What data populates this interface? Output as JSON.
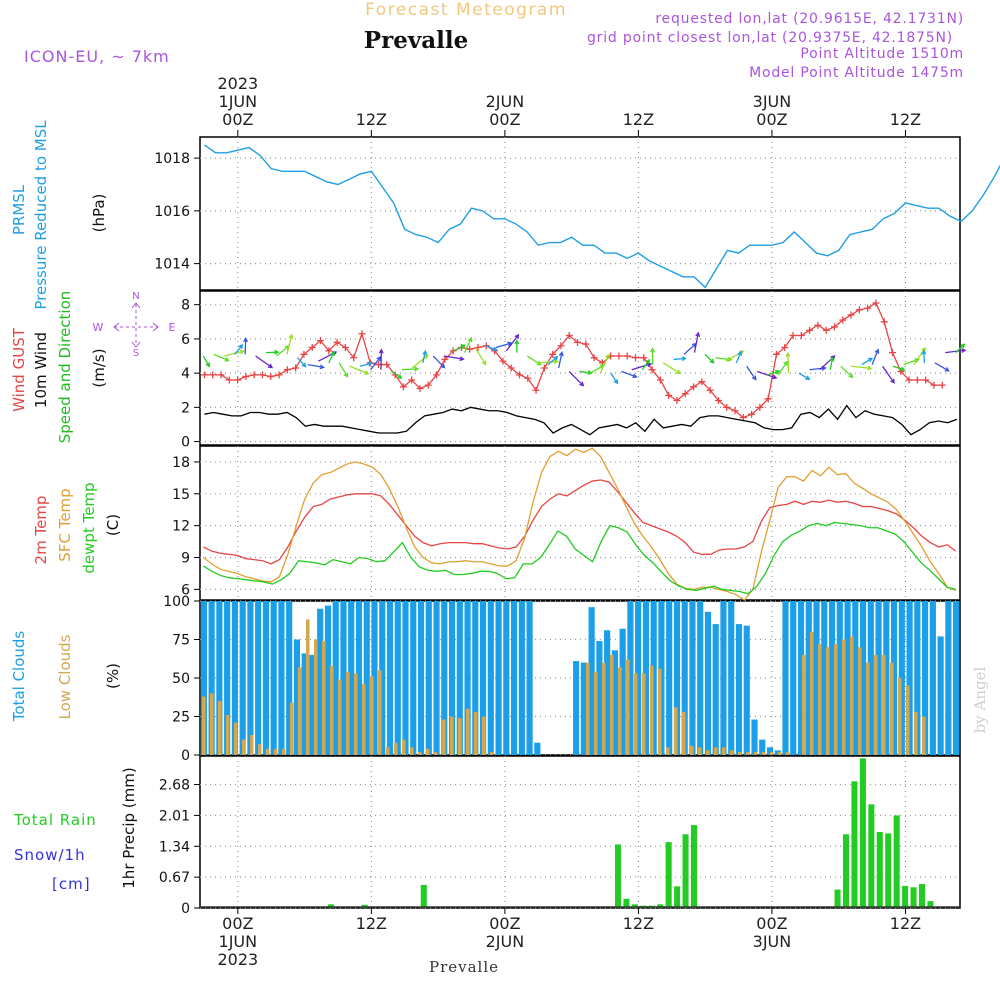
{
  "header": {
    "forecast_title": "Forecast Meteogram",
    "station": "Prevalle",
    "model": "ICON-EU, ~ 7km",
    "requested": "requested lon,lat (20.9615E, 42.1731N)",
    "grid_point": "grid point closest lon,lat (20.9375E, 42.1875N)",
    "point_alt": "Point Altitude 1510m",
    "model_alt": "Model Point Altitude 1475m",
    "watermark": "by Angel",
    "footer_station": "Prevalle"
  },
  "time_axis": {
    "top_labels": [
      {
        "hour": 0,
        "lines": [
          "2023",
          "1JUN",
          "00Z"
        ]
      },
      {
        "hour": 12,
        "lines": [
          "12Z"
        ]
      },
      {
        "hour": 24,
        "lines": [
          "2JUN",
          "00Z"
        ]
      },
      {
        "hour": 36,
        "lines": [
          "12Z"
        ]
      },
      {
        "hour": 48,
        "lines": [
          "3JUN",
          "00Z"
        ]
      },
      {
        "hour": 60,
        "lines": [
          "12Z"
        ]
      }
    ],
    "bottom_labels": [
      {
        "hour": 0,
        "lines": [
          "00Z",
          "1JUN",
          "2023"
        ]
      },
      {
        "hour": 12,
        "lines": [
          "12Z"
        ]
      },
      {
        "hour": 24,
        "lines": [
          "00Z",
          "2JUN"
        ]
      },
      {
        "hour": 36,
        "lines": [
          "12Z"
        ]
      },
      {
        "hour": 48,
        "lines": [
          "00Z",
          "3JUN"
        ]
      },
      {
        "hour": 60,
        "lines": [
          "12Z"
        ]
      }
    ]
  },
  "colors": {
    "pressure": "#1e9fe6",
    "gust": "#e84545",
    "wind10": "#000000",
    "wind_label": "#22bb22",
    "t2m": "#e84545",
    "sfc": "#e0a030",
    "dewpt": "#22cc22",
    "total_cloud": "#1a9fe8",
    "low_cloud": "#d4a850",
    "rain": "#22cc22",
    "snow": "#3333dd",
    "purple": "#aa55dd",
    "title_orange": "#f0c880"
  },
  "chart_data": [
    {
      "type": "line",
      "title": "PRMSL Pressure Reduced to MSL",
      "ylabel": "(hPa)",
      "ylim": [
        1013,
        1018.8
      ],
      "yticks": [
        1014,
        1016,
        1018
      ],
      "x_start_hour": -3,
      "x_step_hours": 1,
      "series": [
        {
          "name": "PRMSL",
          "values": [
            1018.5,
            1018.2,
            1018.2,
            1018.3,
            1018.4,
            1018.1,
            1017.6,
            1017.5,
            1017.5,
            1017.5,
            1017.3,
            1017.1,
            1017.0,
            1017.2,
            1017.4,
            1017.5,
            1016.9,
            1016.3,
            1015.3,
            1015.1,
            1015.0,
            1014.8,
            1015.3,
            1015.5,
            1016.1,
            1016.0,
            1015.7,
            1015.7,
            1015.5,
            1015.2,
            1014.7,
            1014.8,
            1014.8,
            1015.0,
            1014.7,
            1014.7,
            1014.4,
            1014.4,
            1014.2,
            1014.4,
            1014.1,
            1013.9,
            1013.7,
            1013.5,
            1013.5,
            1013.1,
            1013.8,
            1014.5,
            1014.4,
            1014.7,
            1014.7,
            1014.7,
            1014.8,
            1015.2,
            1014.8,
            1014.4,
            1014.3,
            1014.5,
            1015.1,
            1015.2,
            1015.3,
            1015.7,
            1015.9,
            1016.3,
            1016.2,
            1016.1,
            1016.1,
            1015.8,
            1015.6,
            1016.0,
            1016.6,
            1017.3,
            1018.1,
            1018.1,
            1018.1,
            1017.8,
            1017.8
          ]
        }
      ]
    },
    {
      "type": "line",
      "title": "Wind GUST / 10m Wind Speed and Direction",
      "ylabel": "(m/s)",
      "ylim": [
        -0.2,
        8.8
      ],
      "yticks": [
        0,
        2,
        4,
        6,
        8
      ],
      "compass": {
        "n": "N",
        "s": "S",
        "w": "W",
        "e": "E"
      },
      "x_start_hour": -3,
      "x_step_hours": 1,
      "series": [
        {
          "name": "Wind GUST",
          "values": [
            3.9,
            3.9,
            3.9,
            3.6,
            3.6,
            3.8,
            3.9,
            3.9,
            3.8,
            3.9,
            4.2,
            4.3,
            5.1,
            5.5,
            5.9,
            5.3,
            5.8,
            5.5,
            4.9,
            6.3,
            4.6,
            4.5,
            4.5,
            3.9,
            3.2,
            3.6,
            3.1,
            3.3,
            3.9,
            4.8,
            5.3,
            5.5,
            5.4,
            5.5,
            5.6,
            5.3,
            4.7,
            4.3,
            3.9,
            3.7,
            3.0,
            4.3,
            5.1,
            5.6,
            6.2,
            5.8,
            5.7,
            4.9,
            4.6,
            5.0,
            5.0,
            5.0,
            4.9,
            4.9,
            4.2,
            3.6,
            2.7,
            2.4,
            2.8,
            3.2,
            3.5,
            3.0,
            2.4,
            2.0,
            1.8,
            1.4,
            1.6,
            2.0,
            2.5,
            5.1,
            5.5,
            6.2,
            6.2,
            6.5,
            6.8,
            6.5,
            6.7,
            7.1,
            7.4,
            7.7,
            7.8,
            8.1,
            7.0,
            5.2,
            4.1,
            3.6,
            3.6,
            3.6,
            3.3,
            3.3
          ]
        },
        {
          "name": "10m Wind",
          "values": [
            1.6,
            1.7,
            1.6,
            1.5,
            1.5,
            1.7,
            1.7,
            1.6,
            1.6,
            1.7,
            1.4,
            0.9,
            1.0,
            0.9,
            0.9,
            0.9,
            0.8,
            0.7,
            0.6,
            0.5,
            0.5,
            0.5,
            0.6,
            1.1,
            1.5,
            1.6,
            1.7,
            1.9,
            1.8,
            2.0,
            1.9,
            1.8,
            1.8,
            1.7,
            1.5,
            1.4,
            1.3,
            1.1,
            0.5,
            0.8,
            1.0,
            0.7,
            0.4,
            0.8,
            0.9,
            1.0,
            0.8,
            1.1,
            0.6,
            1.3,
            0.8,
            0.9,
            1.0,
            0.9,
            1.4,
            1.5,
            1.5,
            1.4,
            1.3,
            1.2,
            1.1,
            0.8,
            0.7,
            0.7,
            0.8,
            1.6,
            1.7,
            1.4,
            1.9,
            1.3,
            2.1,
            1.4,
            1.8,
            1.6,
            1.5,
            1.4,
            1.0,
            0.4,
            0.7,
            1.1,
            1.2,
            1.1,
            1.3
          ]
        },
        {
          "name": "10m Wind Speed and Direction",
          "values": [
            5.0,
            5.1,
            5.0,
            5.1,
            5.1,
            5.0,
            5.2,
            5.0,
            5.1,
            4.9,
            4.5,
            4.7,
            4.6,
            4.6,
            4.4,
            4.4,
            4.2,
            4.2,
            4.1,
            4.2,
            4.3,
            4.6,
            5.0,
            5.0,
            5.3,
            5.2,
            5.5,
            5.6,
            5.5,
            5.3,
            5.2,
            5.0,
            4.6,
            4.5,
            4.3,
            4.1,
            4.1,
            4.0,
            4.0,
            4.0,
            4.1,
            4.2,
            4.2,
            4.5,
            4.6,
            4.8,
            5.1,
            5.2,
            5.1,
            4.9,
            4.7,
            4.6,
            4.4,
            4.1,
            3.9,
            3.9,
            4.0,
            4.0,
            4.2,
            4.2,
            4.2,
            4.4,
            4.4,
            4.5,
            4.5,
            4.4,
            4.4,
            4.5,
            4.5,
            4.6,
            4.6,
            5.2,
            5.2
          ]
        }
      ]
    },
    {
      "type": "line",
      "title": "2m Temp / SFC Temp / dewpt Temp",
      "ylabel": "(C)",
      "ylim": [
        5,
        19.5
      ],
      "yticks": [
        6,
        9,
        12,
        15,
        18
      ],
      "x_start_hour": -3,
      "x_step_hours": 1,
      "series": [
        {
          "name": "2m Temp",
          "values": [
            10.0,
            9.6,
            9.4,
            9.3,
            9.2,
            8.9,
            8.8,
            8.7,
            8.4,
            8.8,
            10.0,
            11.5,
            12.8,
            13.8,
            14.0,
            14.5,
            14.7,
            14.9,
            15.0,
            15.0,
            15.0,
            14.8,
            14.0,
            13.0,
            12.0,
            11.0,
            10.4,
            10.1,
            10.3,
            10.4,
            10.4,
            10.4,
            10.3,
            10.3,
            10.1,
            9.9,
            9.8,
            10.0,
            11.0,
            12.5,
            13.8,
            14.5,
            15.0,
            14.8,
            15.3,
            15.8,
            16.2,
            16.3,
            16.1,
            15.2,
            14.2,
            13.2,
            12.3,
            12.0,
            11.7,
            11.4,
            11.0,
            10.4,
            9.5,
            9.3,
            9.3,
            9.7,
            9.8,
            9.8,
            10.0,
            10.5,
            12.4,
            13.7,
            13.9,
            14.0,
            14.3,
            14.0,
            14.3,
            14.2,
            14.4,
            14.2,
            14.3,
            14.1,
            13.8,
            13.8,
            13.6,
            13.4,
            13.1,
            12.5,
            11.8,
            11.0,
            10.4,
            10.0,
            10.2,
            9.6
          ]
        },
        {
          "name": "SFC Temp",
          "values": [
            9.0,
            8.4,
            7.9,
            7.7,
            7.5,
            7.2,
            7.0,
            6.8,
            6.7,
            7.2,
            9.3,
            12.0,
            14.5,
            16.0,
            16.8,
            17.0,
            17.4,
            17.8,
            18.0,
            17.8,
            17.5,
            16.8,
            15.5,
            13.8,
            11.8,
            10.0,
            9.0,
            8.5,
            8.4,
            8.6,
            8.6,
            8.7,
            8.6,
            8.6,
            8.4,
            8.2,
            8.2,
            8.7,
            10.8,
            14.2,
            17.0,
            18.5,
            19.0,
            18.6,
            19.2,
            18.9,
            19.3,
            18.5,
            17.0,
            15.5,
            13.8,
            12.2,
            11.0,
            10.0,
            8.8,
            7.5,
            6.5,
            6.1,
            6.0,
            6.2,
            6.2,
            6.0,
            5.8,
            5.5,
            5.0,
            6.0,
            9.5,
            12.5,
            15.6,
            16.6,
            16.6,
            16.2,
            17.2,
            16.7,
            17.5,
            16.8,
            16.9,
            16.0,
            15.5,
            15.0,
            14.6,
            14.2,
            13.5,
            12.4,
            11.2,
            10.0,
            8.6,
            7.5,
            6.2,
            5.9
          ]
        },
        {
          "name": "dewpt Temp",
          "values": [
            8.2,
            7.7,
            7.3,
            7.1,
            7.0,
            6.9,
            6.8,
            6.7,
            6.5,
            6.9,
            7.5,
            8.7,
            8.6,
            8.5,
            8.3,
            8.8,
            8.6,
            8.4,
            9.0,
            8.9,
            8.6,
            8.7,
            9.5,
            10.4,
            9.0,
            8.1,
            7.8,
            7.7,
            7.8,
            7.4,
            7.4,
            7.5,
            7.7,
            7.7,
            7.5,
            7.0,
            7.1,
            8.4,
            8.4,
            9.0,
            10.2,
            11.5,
            11.0,
            9.8,
            9.2,
            8.6,
            10.5,
            12.0,
            11.8,
            11.4,
            10.2,
            9.2,
            8.5,
            7.6,
            6.8,
            6.3,
            6.0,
            5.9,
            6.1,
            6.3,
            6.0,
            5.9,
            5.8,
            5.6,
            6.3,
            7.5,
            9.2,
            10.5,
            11.1,
            11.5,
            12.0,
            12.2,
            12.0,
            12.3,
            12.2,
            12.1,
            12.0,
            11.8,
            11.8,
            11.5,
            11.2,
            10.5,
            9.5,
            8.5,
            7.8,
            7.0,
            6.2,
            6.0
          ]
        }
      ]
    },
    {
      "type": "bar",
      "title": "Total Clouds / Low Clouds",
      "ylabel": "(%)",
      "ylim": [
        0,
        100
      ],
      "yticks": [
        0,
        25,
        50,
        75,
        100
      ],
      "x_start_hour": -3,
      "x_step_hours": 1,
      "series": [
        {
          "name": "Total Clouds",
          "values": [
            100,
            100,
            100,
            100,
            100,
            100,
            100,
            100,
            100,
            100,
            100,
            100,
            75,
            66,
            65,
            95,
            97,
            100,
            100,
            100,
            100,
            100,
            100,
            100,
            100,
            100,
            100,
            100,
            100,
            100,
            100,
            100,
            100,
            100,
            100,
            100,
            100,
            100,
            100,
            100,
            100,
            100,
            100,
            8,
            0,
            0,
            0,
            0,
            61,
            60,
            96,
            74,
            81,
            68,
            82,
            100,
            100,
            100,
            100,
            100,
            100,
            100,
            100,
            100,
            100,
            93,
            85,
            100,
            100,
            85,
            84,
            23,
            10,
            5,
            3,
            100,
            100,
            100,
            100,
            100,
            100,
            100,
            100,
            100,
            100,
            100,
            100,
            100,
            100,
            100,
            100,
            100,
            100,
            100,
            100,
            77,
            100,
            100
          ]
        },
        {
          "name": "Low Clouds",
          "values": [
            38,
            40,
            35,
            26,
            21,
            10,
            13,
            7,
            4,
            4,
            4,
            34,
            57,
            88,
            75,
            74,
            58,
            49,
            54,
            53,
            46,
            51,
            55,
            5,
            8,
            10,
            5,
            2,
            4,
            2,
            23,
            25,
            24,
            30,
            28,
            25,
            2,
            0,
            0,
            0,
            0,
            0,
            0,
            0,
            0,
            0,
            0,
            0,
            60,
            54,
            60,
            65,
            57,
            62,
            53,
            53,
            58,
            56,
            5,
            31,
            28,
            6,
            5,
            3,
            5,
            5,
            3,
            2,
            2,
            2,
            2,
            2,
            2,
            2,
            0,
            65,
            80,
            72,
            70,
            72,
            75,
            77,
            70,
            60,
            65,
            65,
            60,
            50,
            45,
            28,
            25,
            0,
            0,
            0,
            0
          ]
        }
      ]
    },
    {
      "type": "bar",
      "title": "Total Rain / Snow/1h [cm]",
      "ylabel": "1hr Precip (mm)",
      "ylim": [
        0,
        3.3
      ],
      "yticks": [
        0,
        0.67,
        1.34,
        2.01,
        2.68
      ],
      "ytick_labels": [
        "0",
        "0.67",
        "1.34",
        "2.01",
        "2.68"
      ],
      "x_start_hour": -3,
      "x_step_hours": 1,
      "series": [
        {
          "name": "Total Rain",
          "values": [
            0,
            0,
            0,
            0,
            0,
            0,
            0,
            0,
            0,
            0,
            0,
            0,
            0,
            0,
            0,
            0.08,
            0,
            0,
            0,
            0.07,
            0,
            0,
            0,
            0,
            0,
            0,
            0.5,
            0,
            0,
            0,
            0,
            0,
            0,
            0,
            0,
            0,
            0,
            0,
            0,
            0,
            0,
            0,
            0,
            0,
            0,
            0,
            0,
            0,
            0,
            1.38,
            0.2,
            0.08,
            0.05,
            0.05,
            0.08,
            1.43,
            0.47,
            1.6,
            1.8,
            0,
            0,
            0,
            0,
            0,
            0,
            0,
            0,
            0,
            0,
            0,
            0,
            0,
            0,
            0,
            0,
            0.4,
            1.6,
            2.75,
            3.25,
            2.25,
            1.65,
            1.62,
            2.01,
            0.48,
            0.45,
            0.52,
            0.15,
            0,
            0,
            0
          ]
        },
        {
          "name": "Snow/1h",
          "values": []
        }
      ]
    }
  ]
}
